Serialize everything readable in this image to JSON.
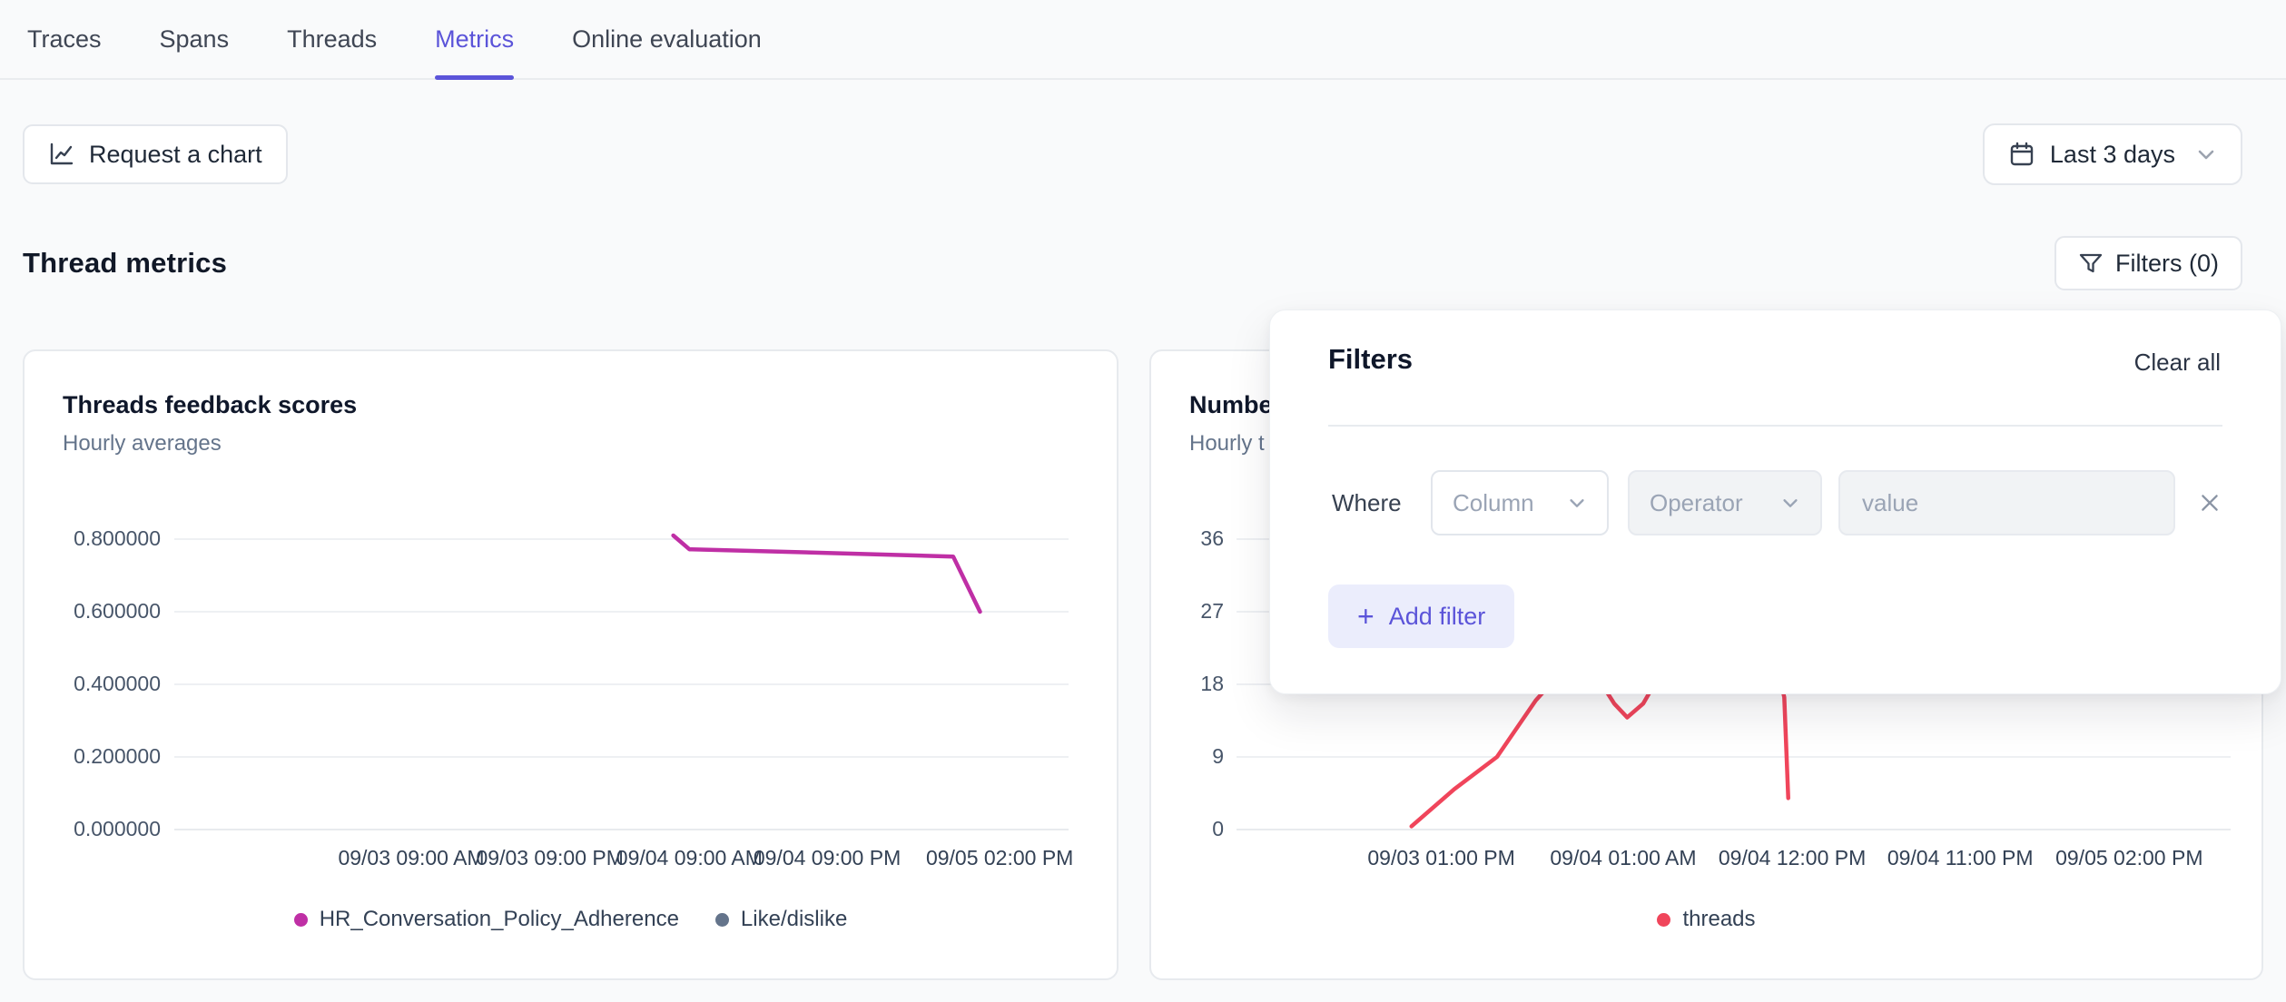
{
  "tabs": {
    "items": [
      {
        "label": "Traces",
        "active": false
      },
      {
        "label": "Spans",
        "active": false
      },
      {
        "label": "Threads",
        "active": false
      },
      {
        "label": "Metrics",
        "active": true
      },
      {
        "label": "Online evaluation",
        "active": false
      }
    ]
  },
  "toolbar": {
    "request_chart_label": "Request a chart",
    "date_range_label": "Last 3 days"
  },
  "section": {
    "title": "Thread metrics",
    "filters_button_label": "Filters (0)"
  },
  "filters_popover": {
    "title": "Filters",
    "clear_all_label": "Clear all",
    "where_label": "Where",
    "column_placeholder": "Column",
    "operator_placeholder": "Operator",
    "value_placeholder": "value",
    "add_filter_label": "Add filter",
    "plus_glyph": "+"
  },
  "colors": {
    "accent_indigo": "#5b54d9",
    "magenta_series": "#bf2fa5",
    "slate_series": "#64748b",
    "rose_series": "#f0455b"
  },
  "chart_data": [
    {
      "type": "line",
      "title": "Threads feedback scores",
      "subtitle": "Hourly averages",
      "ylim": [
        0,
        0.8
      ],
      "grid": true,
      "legend_position": "bottom",
      "y_ticks": [
        {
          "label": "0.800000",
          "value": 0.8
        },
        {
          "label": "0.600000",
          "value": 0.6
        },
        {
          "label": "0.400000",
          "value": 0.4
        },
        {
          "label": "0.200000",
          "value": 0.2
        },
        {
          "label": "0.000000",
          "value": 0.0
        }
      ],
      "x_ticks": [
        {
          "label": "09/03 09:00 AM",
          "x": 0.265
        },
        {
          "label": "09/03 09:00 PM",
          "x": 0.42
        },
        {
          "label": "09/04 09:00 AM",
          "x": 0.576
        },
        {
          "label": "09/04 09:00 PM",
          "x": 0.73
        },
        {
          "label": "09/05 02:00 PM",
          "x": 0.923
        }
      ],
      "series": [
        {
          "name": "HR_Conversation_Policy_Adherence",
          "color": "#bf2fa5",
          "points": [
            [
              0.558,
              0.81
            ],
            [
              0.576,
              0.772
            ],
            [
              0.73,
              0.762
            ],
            [
              0.871,
              0.752
            ],
            [
              0.901,
              0.6
            ]
          ]
        },
        {
          "name": "Like/dislike",
          "color": "#64748b",
          "points": []
        }
      ],
      "legend": [
        {
          "label": "HR_Conversation_Policy_Adherence",
          "color": "#bf2fa5"
        },
        {
          "label": "Like/dislike",
          "color": "#64748b"
        }
      ]
    },
    {
      "type": "line",
      "title": "Numbe",
      "subtitle": "Hourly t",
      "ylim": [
        0,
        36
      ],
      "grid": true,
      "legend_position": "bottom",
      "y_ticks": [
        {
          "label": "36",
          "value": 36
        },
        {
          "label": "27",
          "value": 27
        },
        {
          "label": "18",
          "value": 18
        },
        {
          "label": "9",
          "value": 9
        },
        {
          "label": "0",
          "value": 0
        }
      ],
      "x_ticks": [
        {
          "label": "09/03 01:00 PM",
          "x": 0.206
        },
        {
          "label": "09/04 01:00 AM",
          "x": 0.389
        },
        {
          "label": "09/04 12:00 PM",
          "x": 0.559
        },
        {
          "label": "09/04 11:00 PM",
          "x": 0.728
        },
        {
          "label": "09/05 02:00 PM",
          "x": 0.898
        }
      ],
      "series": [
        {
          "name": "threads",
          "color": "#f0455b",
          "points": [
            [
              0.176,
              0.4
            ],
            [
              0.219,
              5
            ],
            [
              0.262,
              9
            ],
            [
              0.301,
              16
            ],
            [
              0.33,
              20
            ],
            [
              0.352,
              21
            ],
            [
              0.365,
              18.5
            ],
            [
              0.38,
              15.6
            ],
            [
              0.393,
              13.9
            ],
            [
              0.409,
              15.6
            ],
            [
              0.425,
              19
            ],
            [
              0.45,
              21
            ],
            [
              0.53,
              21
            ],
            [
              0.548,
              18
            ],
            [
              0.551,
              16.4
            ],
            [
              0.555,
              3.9
            ]
          ]
        }
      ],
      "legend": [
        {
          "label": "threads",
          "color": "#f0455b"
        }
      ]
    }
  ]
}
